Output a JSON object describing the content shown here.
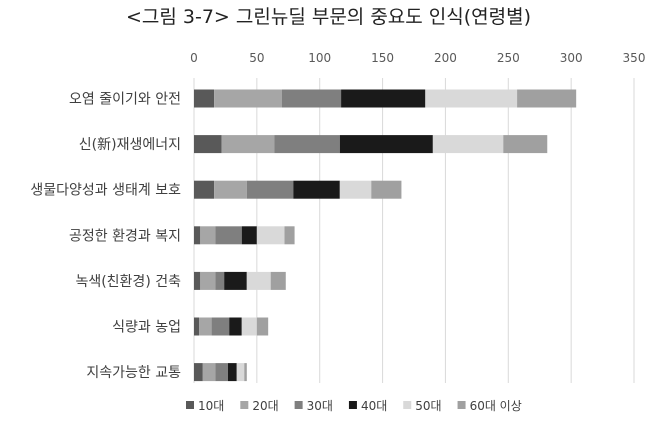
{
  "chart_data": {
    "type": "bar",
    "orientation": "horizontal",
    "stacked": true,
    "title": "<그림 3-7> 그린뉴딜 부문의 중요도 인식(연령별)",
    "xlabel": "",
    "ylabel": "",
    "xlim": [
      0,
      350
    ],
    "xticks": [
      0,
      50,
      100,
      150,
      200,
      250,
      300,
      350
    ],
    "grid": true,
    "legend_position": "bottom",
    "categories": [
      "오염 줄이기와 안전",
      "신(新)재생에너지",
      "생물다양성과 생태계 보호",
      "공정한 환경과 복지",
      "녹색(친환경) 건축",
      "식량과 농업",
      "지속가능한 교통"
    ],
    "series": [
      {
        "name": "10대",
        "color": "#595959",
        "values": [
          16,
          22,
          16,
          5,
          5,
          4,
          7
        ]
      },
      {
        "name": "20대",
        "color": "#a6a6a6",
        "values": [
          54,
          42,
          26,
          12,
          12,
          10,
          10
        ]
      },
      {
        "name": "30대",
        "color": "#7f7f7f",
        "values": [
          47,
          52,
          37,
          21,
          7,
          14,
          10
        ]
      },
      {
        "name": "40대",
        "color": "#1a1a1a",
        "values": [
          67,
          74,
          37,
          12,
          18,
          10,
          7
        ]
      },
      {
        "name": "50대",
        "color": "#d9d9d9",
        "values": [
          73,
          56,
          25,
          22,
          19,
          12,
          6
        ]
      },
      {
        "name": "60대 이상",
        "color": "#a0a0a0",
        "values": [
          47,
          35,
          24,
          8,
          12,
          9,
          2
        ]
      }
    ]
  }
}
